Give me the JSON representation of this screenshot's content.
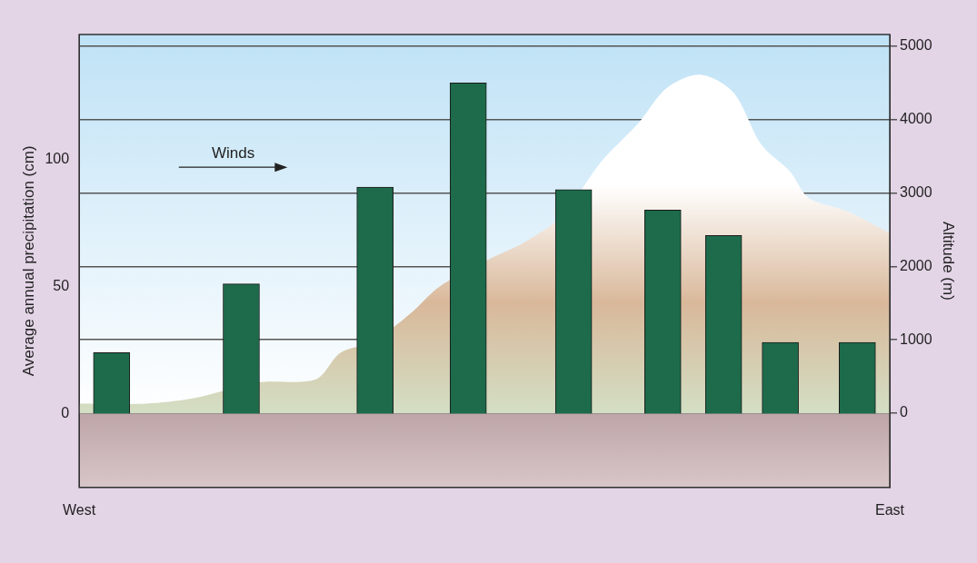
{
  "chart_data": {
    "type": "bar",
    "x": [
      4,
      20,
      36.5,
      48,
      61,
      72,
      79.5,
      86.5,
      96
    ],
    "values": [
      24,
      51,
      89,
      130,
      88,
      80,
      70,
      28,
      28
    ],
    "color": "#1d6b4b",
    "altitude": {
      "type": "line",
      "axis": "y2",
      "color": "#d9b89a",
      "x": [
        0,
        8.2,
        14,
        22.2,
        29.2,
        32.2,
        36.3,
        40.9,
        44.4,
        50.3,
        55,
        59.6,
        64.3,
        69,
        72.5,
        76.6,
        80.7,
        84.2,
        87.7,
        90,
        94.7,
        100
      ],
      "values": [
        130,
        130,
        200,
        420,
        460,
        820,
        980,
        1360,
        1720,
        2080,
        2330,
        2690,
        3410,
        3950,
        4430,
        4610,
        4370,
        3650,
        3290,
        2930,
        2750,
        2450
      ]
    },
    "xlim": [
      0,
      100
    ],
    "xticks": [
      {
        "value": 0,
        "label": "West"
      },
      {
        "value": 100,
        "label": "East"
      }
    ],
    "ylim": [
      -29,
      149
    ],
    "yticks": [
      0,
      50,
      100
    ],
    "y2lim": [
      -1012,
      5157
    ],
    "y2ticks": [
      0,
      1000,
      2000,
      3000,
      4000,
      5000
    ],
    "y_label": "Average annual precipitation (cm)",
    "y2_label": "Altitude (m)",
    "annotations": [
      {
        "text": "Winds"
      }
    ],
    "grid": true
  }
}
